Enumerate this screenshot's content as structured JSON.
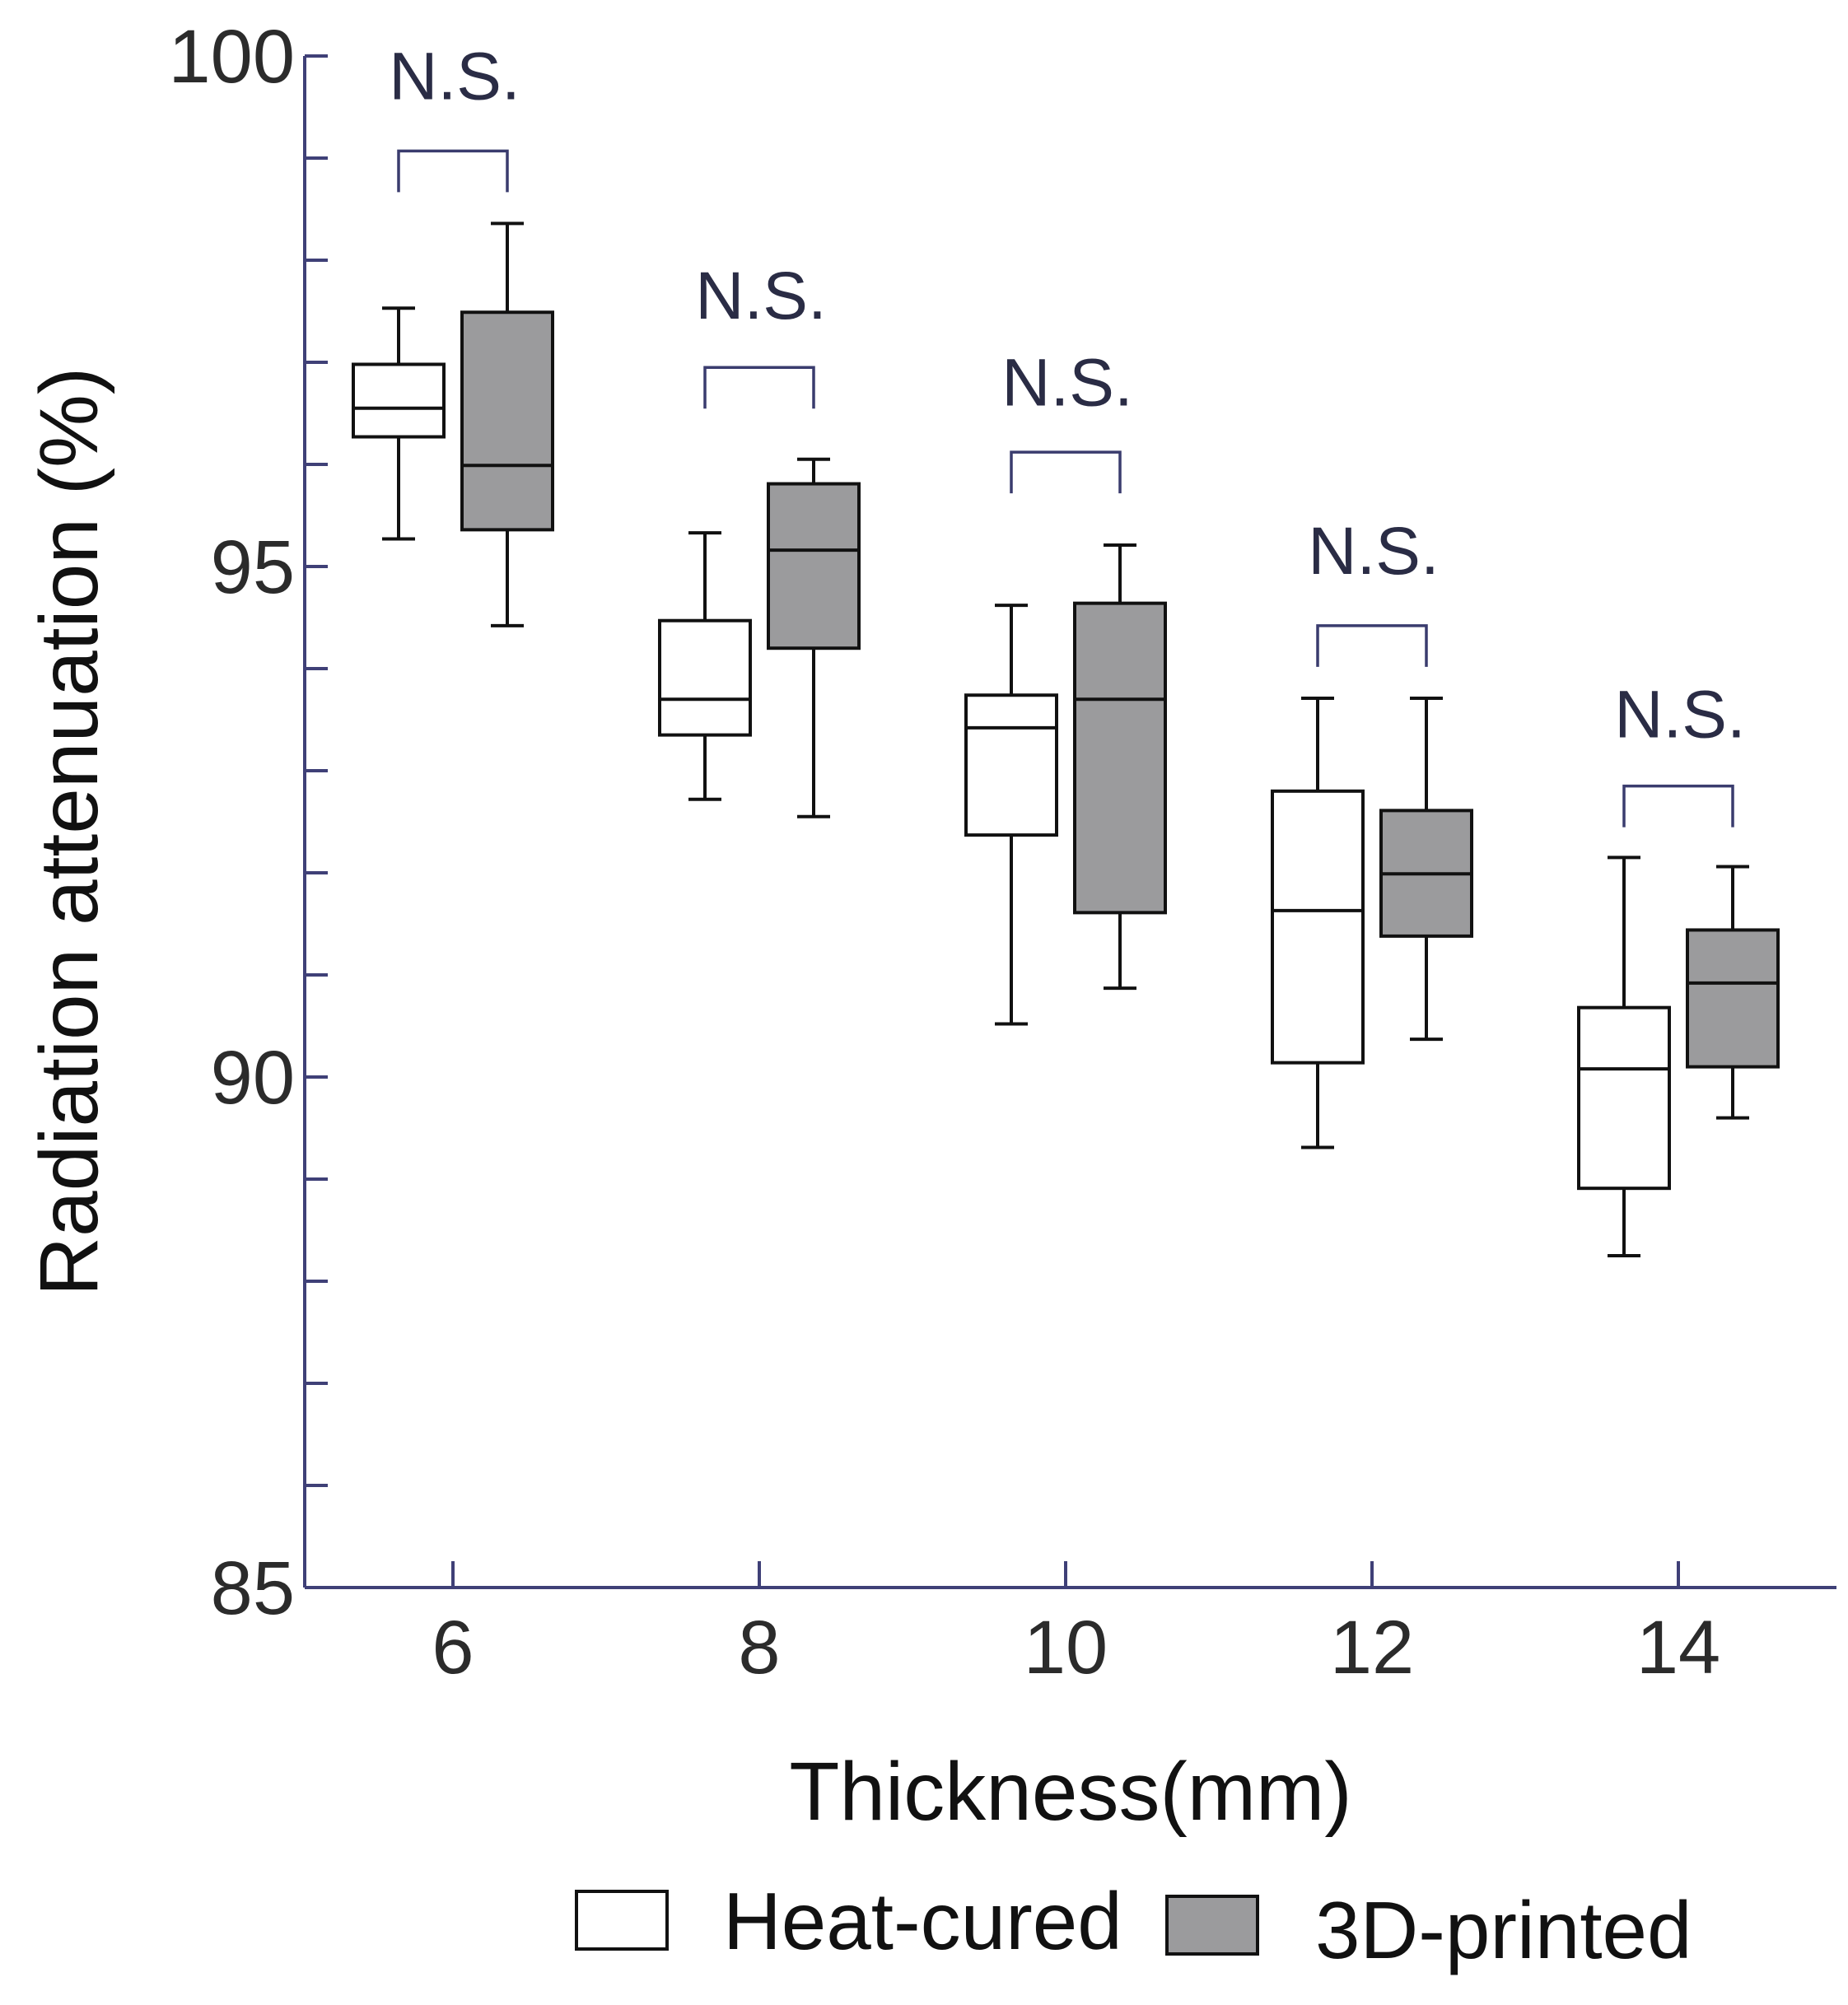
{
  "chart_data": {
    "type": "boxplot",
    "title": "",
    "xlabel": "Thickness(mm)",
    "ylabel": "Radiation attenuation (%)",
    "ylim": [
      85,
      100
    ],
    "y_major_ticks": [
      85,
      90,
      95,
      100
    ],
    "y_minor_step": 1,
    "categories": [
      "6",
      "8",
      "10",
      "12",
      "14"
    ],
    "series": [
      {
        "name": "Heat-cured",
        "color": "#ffffff",
        "boxes": [
          {
            "category": "6",
            "whisker_low": 95.27,
            "q1": 96.27,
            "median": 96.55,
            "q3": 96.98,
            "whisker_high": 97.53
          },
          {
            "category": "8",
            "whisker_low": 92.72,
            "q1": 93.35,
            "median": 93.7,
            "q3": 94.47,
            "whisker_high": 95.33
          },
          {
            "category": "10",
            "whisker_low": 90.52,
            "q1": 92.37,
            "median": 93.42,
            "q3": 93.74,
            "whisker_high": 94.62
          },
          {
            "category": "12",
            "whisker_low": 89.31,
            "q1": 90.14,
            "median": 91.63,
            "q3": 92.8,
            "whisker_high": 93.71
          },
          {
            "category": "14",
            "whisker_low": 88.25,
            "q1": 88.91,
            "median": 90.08,
            "q3": 90.68,
            "whisker_high": 92.15
          }
        ]
      },
      {
        "name": "3D-printed",
        "color": "#9b9b9d",
        "boxes": [
          {
            "category": "6",
            "whisker_low": 94.42,
            "q1": 95.36,
            "median": 95.99,
            "q3": 97.49,
            "whisker_high": 98.36
          },
          {
            "category": "8",
            "whisker_low": 92.55,
            "q1": 94.2,
            "median": 95.16,
            "q3": 95.81,
            "whisker_high": 96.05
          },
          {
            "category": "10",
            "whisker_low": 90.87,
            "q1": 91.61,
            "median": 93.7,
            "q3": 94.64,
            "whisker_high": 95.21
          },
          {
            "category": "12",
            "whisker_low": 90.37,
            "q1": 91.38,
            "median": 91.99,
            "q3": 92.61,
            "whisker_high": 93.71
          },
          {
            "category": "14",
            "whisker_low": 89.6,
            "q1": 90.1,
            "median": 90.92,
            "q3": 91.44,
            "whisker_high": 92.06
          }
        ]
      }
    ],
    "annotations": [
      {
        "category": "6",
        "text": "N.S.",
        "bracket_y": 99.07,
        "text_y": 99.9
      },
      {
        "category": "8",
        "text": "N.S.",
        "bracket_y": 96.95,
        "text_y": 97.75
      },
      {
        "category": "10",
        "text": "N.S.",
        "bracket_y": 96.12,
        "text_y": 96.9
      },
      {
        "category": "12",
        "text": "N.S.",
        "bracket_y": 94.42,
        "text_y": 95.25
      },
      {
        "category": "14",
        "text": "N.S.",
        "bracket_y": 92.85,
        "text_y": 93.65
      }
    ],
    "legend": {
      "placement": "bottom",
      "entries": [
        {
          "label": "Heat-cured",
          "color": "#ffffff"
        },
        {
          "label": "3D-printed",
          "color": "#9b9b9d"
        }
      ]
    },
    "colors": {
      "axis": "#3f4077",
      "bracket": "#3a3c6e",
      "box_stroke": "#111111"
    }
  }
}
